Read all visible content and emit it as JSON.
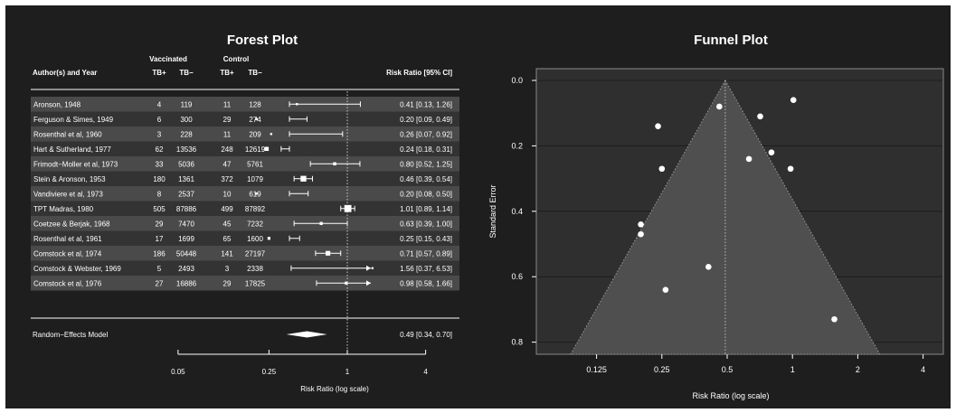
{
  "chart_data": [
    {
      "type": "forest",
      "title": "Forest Plot",
      "headers": {
        "author": "Author(s) and Year",
        "vaccinated": "Vaccinated",
        "control": "Control",
        "tb_pos": "TB+",
        "tb_neg": "TB−",
        "rr": "Risk Ratio [95% CI]"
      },
      "studies": [
        {
          "name": "Aronson, 1948",
          "v_pos": "4",
          "v_neg": "119",
          "c_pos": "11",
          "c_neg": "128",
          "rr": 0.41,
          "lo": 0.13,
          "hi": 1.26,
          "label": "0.41 [0.13, 1.26]"
        },
        {
          "name": "Ferguson & Simes, 1949",
          "v_pos": "6",
          "v_neg": "300",
          "c_pos": "29",
          "c_neg": "274",
          "rr": 0.2,
          "lo": 0.09,
          "hi": 0.49,
          "label": "0.20 [0.09, 0.49]"
        },
        {
          "name": "Rosenthal et al, 1960",
          "v_pos": "3",
          "v_neg": "228",
          "c_pos": "11",
          "c_neg": "209",
          "rr": 0.26,
          "lo": 0.07,
          "hi": 0.92,
          "label": "0.26 [0.07, 0.92]"
        },
        {
          "name": "Hart & Sutherland, 1977",
          "v_pos": "62",
          "v_neg": "13536",
          "c_pos": "248",
          "c_neg": "12619",
          "rr": 0.24,
          "lo": 0.18,
          "hi": 0.31,
          "label": "0.24 [0.18, 0.31]"
        },
        {
          "name": "Frimodt−Moller et al, 1973",
          "v_pos": "33",
          "v_neg": "5036",
          "c_pos": "47",
          "c_neg": "5761",
          "rr": 0.8,
          "lo": 0.52,
          "hi": 1.25,
          "label": "0.80 [0.52, 1.25]"
        },
        {
          "name": "Stein & Aronson, 1953",
          "v_pos": "180",
          "v_neg": "1361",
          "c_pos": "372",
          "c_neg": "1079",
          "rr": 0.46,
          "lo": 0.39,
          "hi": 0.54,
          "label": "0.46 [0.39, 0.54]"
        },
        {
          "name": "Vandiviere et al, 1973",
          "v_pos": "8",
          "v_neg": "2537",
          "c_pos": "10",
          "c_neg": "619",
          "rr": 0.2,
          "lo": 0.08,
          "hi": 0.5,
          "label": "0.20 [0.08, 0.50]"
        },
        {
          "name": "TPT Madras, 1980",
          "v_pos": "505",
          "v_neg": "87886",
          "c_pos": "499",
          "c_neg": "87892",
          "rr": 1.01,
          "lo": 0.89,
          "hi": 1.14,
          "label": "1.01 [0.89, 1.14]"
        },
        {
          "name": "Coetzee & Berjak, 1968",
          "v_pos": "29",
          "v_neg": "7470",
          "c_pos": "45",
          "c_neg": "7232",
          "rr": 0.63,
          "lo": 0.39,
          "hi": 1.0,
          "label": "0.63 [0.39, 1.00]"
        },
        {
          "name": "Rosenthal et al, 1961",
          "v_pos": "17",
          "v_neg": "1699",
          "c_pos": "65",
          "c_neg": "1600",
          "rr": 0.25,
          "lo": 0.15,
          "hi": 0.43,
          "label": "0.25 [0.15, 0.43]"
        },
        {
          "name": "Comstock et al, 1974",
          "v_pos": "186",
          "v_neg": "50448",
          "c_pos": "141",
          "c_neg": "27197",
          "rr": 0.71,
          "lo": 0.57,
          "hi": 0.89,
          "label": "0.71 [0.57, 0.89]"
        },
        {
          "name": "Comstock & Webster, 1969",
          "v_pos": "5",
          "v_neg": "2493",
          "c_pos": "3",
          "c_neg": "2338",
          "rr": 1.56,
          "lo": 0.37,
          "hi": 6.53,
          "label": "1.56 [0.37, 6.53]"
        },
        {
          "name": "Comstock et al, 1976",
          "v_pos": "27",
          "v_neg": "16886",
          "c_pos": "29",
          "c_neg": "17825",
          "rr": 0.98,
          "lo": 0.58,
          "hi": 1.66,
          "label": "0.98 [0.58, 1.66]"
        }
      ],
      "summary": {
        "name": "Random−Effects Model",
        "rr": 0.49,
        "lo": 0.34,
        "hi": 0.7,
        "label": "0.49 [0.34, 0.70]"
      },
      "x_scale": "log",
      "x_ticks": [
        0.05,
        0.25,
        1,
        4
      ],
      "x_tick_labels": [
        "0.05",
        "0.25",
        "1",
        "4"
      ],
      "xlabel": "Risk Ratio (log scale)",
      "reference_line": 1
    },
    {
      "type": "scatter",
      "title": "Funnel Plot",
      "xlabel": "Risk Ratio (log scale)",
      "ylabel": "Standard Error",
      "x_scale": "log",
      "x_ticks": [
        0.125,
        0.25,
        0.5,
        1,
        2,
        4
      ],
      "x_tick_labels": [
        "0.125",
        "0.25",
        "0.5",
        "1",
        "2",
        "4"
      ],
      "y_reversed": true,
      "ylim": [
        0.0,
        0.8
      ],
      "y_ticks": [
        0.0,
        0.2,
        0.4,
        0.6,
        0.8
      ],
      "y_tick_labels": [
        "0.0",
        "0.2",
        "0.4",
        "0.6",
        "0.8"
      ],
      "summary_rr": 0.49,
      "points": [
        {
          "x": 0.41,
          "y": 0.57
        },
        {
          "x": 0.2,
          "y": 0.44
        },
        {
          "x": 0.26,
          "y": 0.64
        },
        {
          "x": 0.24,
          "y": 0.14
        },
        {
          "x": 0.8,
          "y": 0.22
        },
        {
          "x": 0.46,
          "y": 0.08
        },
        {
          "x": 0.2,
          "y": 0.47
        },
        {
          "x": 1.01,
          "y": 0.06
        },
        {
          "x": 0.63,
          "y": 0.24
        },
        {
          "x": 0.25,
          "y": 0.27
        },
        {
          "x": 0.71,
          "y": 0.11
        },
        {
          "x": 1.56,
          "y": 0.73
        },
        {
          "x": 0.98,
          "y": 0.27
        }
      ]
    }
  ]
}
